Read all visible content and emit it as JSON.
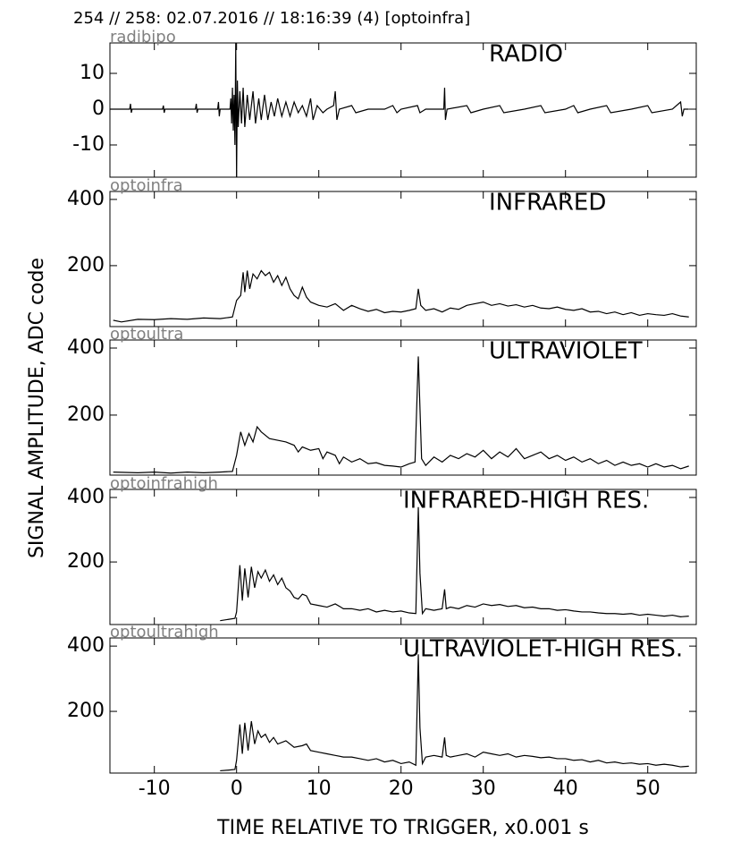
{
  "title": "254 // 258:   02.07.2016 // 18:16:39 (4)  [optoinfra]",
  "xlabel": "TIME RELATIVE TO TRIGGER,   x0.001 s",
  "ylabel": "SIGNAL AMPLITUDE,  ADC code",
  "chart_data": [
    {
      "type": "line",
      "channel": "radibipo",
      "title": "RADIO",
      "color": "#000000",
      "xlim": [
        -15.4,
        55.9
      ],
      "xticks": [
        -10,
        0,
        10,
        20,
        30,
        40,
        50
      ],
      "ylim": [
        -19,
        18.5
      ],
      "yticks": [
        -10,
        0,
        10
      ],
      "x": [
        -15.4,
        -13,
        -12.9,
        -12.8,
        -12.7,
        -9,
        -8.9,
        -8.8,
        -8.7,
        -5,
        -4.9,
        -4.8,
        -4.7,
        -2.3,
        -2.2,
        -2.1,
        -2,
        -0.8,
        -0.7,
        -0.6,
        -0.5,
        -0.4,
        -0.3,
        -0.2,
        -0.1,
        0,
        0.1,
        0.2,
        0.4,
        0.6,
        0.8,
        1,
        1.3,
        1.6,
        2,
        2.3,
        2.7,
        3,
        3.4,
        3.8,
        4.2,
        4.6,
        5,
        5.5,
        6,
        6.5,
        7,
        7.5,
        8,
        8.5,
        9,
        9.3,
        9.8,
        10.5,
        11,
        11.8,
        12,
        12.2,
        12.5,
        14,
        14.5,
        16,
        18,
        19,
        19.5,
        20,
        22,
        22.3,
        23,
        25.2,
        25.3,
        25.4,
        25.6,
        28,
        28.5,
        30,
        32,
        32.5,
        35,
        37,
        37.5,
        40,
        41,
        41.5,
        43,
        45,
        45.5,
        48,
        50,
        50.5,
        53,
        54,
        54.2,
        54.4,
        55
      ],
      "values": [
        0,
        0,
        1.5,
        -1,
        0,
        0,
        1,
        -1,
        0,
        0,
        1.5,
        -1,
        0,
        0,
        2,
        -2,
        0,
        0,
        3,
        -4,
        6,
        -6,
        4,
        -10,
        18.5,
        -19,
        8,
        -5,
        5,
        -4,
        6,
        -5,
        4,
        -3,
        5,
        -4,
        3,
        -3,
        4,
        -3,
        2,
        -2,
        3,
        -2,
        2,
        -2,
        2,
        -1,
        1,
        -2,
        3,
        -3,
        1,
        -1,
        0,
        1,
        5,
        -3,
        0,
        1,
        -1,
        0,
        0,
        1,
        -1,
        0,
        1,
        -1,
        0,
        0,
        6,
        -3,
        0,
        1,
        -1,
        0,
        1,
        -1,
        0,
        1,
        -1,
        0,
        1,
        -1,
        0,
        1,
        -1,
        0,
        1,
        -1,
        0,
        2,
        -2,
        0,
        0
      ]
    },
    {
      "type": "line",
      "channel": "optoinfra",
      "title": "INFRARED",
      "color": "#000000",
      "xlim": [
        -15.4,
        55.9
      ],
      "xticks": [
        -10,
        0,
        10,
        20,
        30,
        40,
        50
      ],
      "ylim": [
        16,
        424
      ],
      "yticks": [
        200,
        400
      ],
      "x": [
        -15,
        -14,
        -12,
        -10,
        -8,
        -6,
        -4,
        -2,
        -0.5,
        0,
        0.5,
        0.8,
        1,
        1.3,
        1.6,
        2,
        2.5,
        3,
        3.5,
        4,
        4.5,
        5,
        5.5,
        6,
        6.5,
        7,
        7.5,
        8,
        8.5,
        9,
        10,
        11,
        12,
        13,
        14,
        15,
        16,
        17,
        18,
        19,
        20,
        21,
        21.8,
        22.1,
        22.4,
        23,
        24,
        25,
        26,
        27,
        28,
        29,
        30,
        31,
        32,
        33,
        34,
        35,
        36,
        37,
        38,
        39,
        40,
        41,
        42,
        43,
        44,
        45,
        46,
        47,
        48,
        49,
        50,
        51,
        52,
        53,
        54,
        55
      ],
      "values": [
        35,
        30,
        38,
        37,
        40,
        38,
        42,
        40,
        45,
        95,
        110,
        180,
        120,
        185,
        130,
        175,
        160,
        185,
        170,
        180,
        150,
        170,
        140,
        165,
        130,
        110,
        100,
        135,
        105,
        90,
        80,
        75,
        85,
        65,
        80,
        70,
        62,
        68,
        58,
        62,
        60,
        65,
        70,
        130,
        80,
        65,
        70,
        60,
        72,
        68,
        80,
        85,
        90,
        80,
        85,
        78,
        82,
        75,
        80,
        72,
        70,
        75,
        68,
        65,
        70,
        60,
        62,
        55,
        60,
        52,
        58,
        50,
        55,
        52,
        50,
        55,
        48,
        45
      ]
    },
    {
      "type": "line",
      "channel": "optoultra",
      "title": "ULTRAVIOLET",
      "color": "#000000",
      "xlim": [
        -15.4,
        55.9
      ],
      "xticks": [
        -10,
        0,
        10,
        20,
        30,
        40,
        50
      ],
      "ylim": [
        21,
        424
      ],
      "yticks": [
        200,
        400
      ],
      "x": [
        -15,
        -12,
        -10,
        -8,
        -6,
        -4,
        -2,
        -0.5,
        0,
        0.5,
        1,
        1.5,
        2,
        2.5,
        3,
        4,
        5,
        6,
        7,
        7.5,
        8,
        9,
        10,
        10.5,
        11,
        12,
        12.5,
        13,
        14,
        15,
        16,
        17,
        18,
        19,
        20,
        21,
        21.7,
        22.1,
        22.5,
        23,
        24,
        25,
        26,
        27,
        28,
        29,
        30,
        31,
        32,
        33,
        34,
        35,
        36,
        37,
        38,
        39,
        40,
        41,
        42,
        43,
        44,
        45,
        46,
        47,
        48,
        49,
        50,
        51,
        52,
        53,
        54,
        55
      ],
      "values": [
        30,
        28,
        30,
        27,
        30,
        28,
        30,
        32,
        80,
        150,
        110,
        145,
        120,
        165,
        150,
        130,
        125,
        120,
        110,
        90,
        105,
        95,
        100,
        70,
        90,
        80,
        55,
        75,
        60,
        70,
        55,
        58,
        50,
        48,
        45,
        55,
        60,
        375,
        70,
        50,
        75,
        60,
        80,
        70,
        85,
        75,
        95,
        70,
        90,
        75,
        100,
        70,
        80,
        90,
        70,
        80,
        65,
        75,
        60,
        70,
        55,
        65,
        50,
        60,
        50,
        55,
        45,
        55,
        45,
        50,
        40,
        48
      ]
    },
    {
      "type": "line",
      "channel": "optoinfrahigh",
      "title": "INFRARED-HIGH RES.",
      "color": "#000000",
      "xlim": [
        -15.4,
        55.9
      ],
      "xticks": [
        -10,
        0,
        10,
        20,
        30,
        40,
        50
      ],
      "ylim": [
        6,
        425
      ],
      "yticks": [
        200,
        400
      ],
      "x": [
        -2,
        -1,
        -0.2,
        0,
        0.4,
        0.7,
        1,
        1.4,
        1.8,
        2.2,
        2.6,
        3,
        3.5,
        4,
        4.5,
        5,
        5.5,
        6,
        6.5,
        7,
        7.5,
        8,
        8.5,
        9,
        10,
        11,
        12,
        13,
        14,
        15,
        16,
        17,
        18,
        19,
        20,
        21,
        21.8,
        22.1,
        22.3,
        22.6,
        23,
        24,
        25,
        25.3,
        25.5,
        26,
        27,
        28,
        29,
        30,
        31,
        32,
        33,
        34,
        35,
        36,
        37,
        38,
        39,
        40,
        41,
        42,
        43,
        44,
        45,
        46,
        47,
        48,
        49,
        50,
        51,
        52,
        53,
        54,
        55
      ],
      "values": [
        18,
        22,
        25,
        45,
        190,
        80,
        180,
        90,
        185,
        120,
        170,
        150,
        175,
        140,
        160,
        130,
        150,
        120,
        110,
        90,
        85,
        100,
        95,
        70,
        65,
        60,
        70,
        55,
        55,
        50,
        55,
        45,
        50,
        45,
        48,
        42,
        40,
        370,
        165,
        40,
        55,
        50,
        55,
        115,
        55,
        60,
        55,
        65,
        60,
        70,
        65,
        68,
        62,
        65,
        58,
        60,
        55,
        55,
        50,
        52,
        48,
        45,
        45,
        42,
        40,
        40,
        38,
        40,
        35,
        38,
        35,
        32,
        35,
        30,
        32
      ]
    },
    {
      "type": "line",
      "channel": "optoultrahigh",
      "title": "ULTRAVIOLET-HIGH RES.",
      "color": "#000000",
      "xlim": [
        -15.4,
        55.9
      ],
      "xticks": [
        -10,
        0,
        10,
        20,
        30,
        40,
        50
      ],
      "ylim": [
        11,
        425
      ],
      "yticks": [
        200,
        400
      ],
      "x": [
        -2,
        -1,
        -0.2,
        0,
        0.4,
        0.7,
        1,
        1.4,
        1.8,
        2.2,
        2.6,
        3,
        3.5,
        4,
        4.5,
        5,
        6,
        7,
        8,
        8.5,
        9,
        10,
        11,
        12,
        13,
        14,
        15,
        16,
        17,
        18,
        19,
        20,
        21,
        21.8,
        22.1,
        22.3,
        22.6,
        23,
        24,
        25,
        25.3,
        25.5,
        26,
        27,
        28,
        29,
        30,
        31,
        32,
        33,
        34,
        35,
        36,
        37,
        38,
        39,
        40,
        41,
        42,
        43,
        44,
        45,
        46,
        47,
        48,
        49,
        50,
        51,
        52,
        53,
        54,
        55
      ],
      "values": [
        18,
        20,
        22,
        50,
        160,
        70,
        165,
        80,
        170,
        100,
        140,
        120,
        130,
        105,
        120,
        100,
        110,
        90,
        95,
        100,
        80,
        75,
        70,
        65,
        60,
        60,
        55,
        50,
        55,
        45,
        50,
        40,
        45,
        35,
        375,
        150,
        40,
        60,
        65,
        60,
        120,
        65,
        60,
        65,
        70,
        60,
        75,
        70,
        65,
        70,
        60,
        65,
        62,
        58,
        60,
        55,
        55,
        50,
        52,
        45,
        50,
        42,
        45,
        40,
        42,
        38,
        40,
        35,
        38,
        35,
        30,
        32
      ]
    }
  ]
}
